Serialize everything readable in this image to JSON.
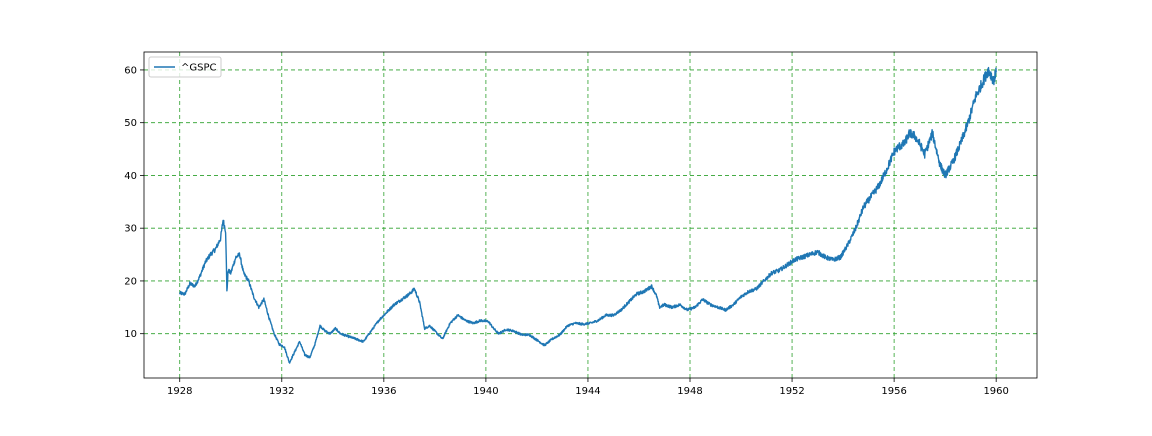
{
  "chart_data": {
    "type": "line",
    "title": "",
    "xlabel": "",
    "ylabel": "",
    "xlim": [
      1926.6,
      1961.6
    ],
    "ylim": [
      1.6,
      63.4
    ],
    "x_ticks": [
      1928,
      1932,
      1936,
      1940,
      1944,
      1948,
      1952,
      1956,
      1960
    ],
    "y_ticks": [
      10,
      20,
      30,
      40,
      50,
      60
    ],
    "grid": true,
    "grid_color": "#2ca02c",
    "legend_position": "top-left",
    "series": [
      {
        "name": "^GSPC",
        "color": "#1f77b4",
        "x": [
          1928.0,
          1928.2,
          1928.4,
          1928.6,
          1928.8,
          1929.0,
          1929.2,
          1929.4,
          1929.6,
          1929.7,
          1929.8,
          1929.85,
          1929.9,
          1930.0,
          1930.2,
          1930.35,
          1930.5,
          1930.7,
          1930.9,
          1931.1,
          1931.3,
          1931.5,
          1931.7,
          1931.9,
          1932.1,
          1932.3,
          1932.5,
          1932.7,
          1932.9,
          1933.1,
          1933.3,
          1933.5,
          1933.7,
          1933.9,
          1934.1,
          1934.3,
          1934.6,
          1934.9,
          1935.2,
          1935.5,
          1935.8,
          1936.1,
          1936.4,
          1936.7,
          1937.0,
          1937.2,
          1937.4,
          1937.6,
          1937.8,
          1938.0,
          1938.3,
          1938.6,
          1938.9,
          1939.2,
          1939.5,
          1939.8,
          1940.1,
          1940.3,
          1940.5,
          1940.8,
          1941.1,
          1941.4,
          1941.7,
          1942.0,
          1942.3,
          1942.6,
          1942.9,
          1943.2,
          1943.5,
          1943.8,
          1944.1,
          1944.4,
          1944.7,
          1945.0,
          1945.3,
          1945.6,
          1945.9,
          1946.2,
          1946.5,
          1946.7,
          1946.8,
          1947.0,
          1947.3,
          1947.6,
          1947.9,
          1948.2,
          1948.5,
          1948.8,
          1949.1,
          1949.4,
          1949.7,
          1950.0,
          1950.3,
          1950.6,
          1950.9,
          1951.2,
          1951.5,
          1951.8,
          1952.1,
          1952.4,
          1952.7,
          1953.0,
          1953.3,
          1953.6,
          1953.9,
          1954.2,
          1954.5,
          1954.8,
          1955.1,
          1955.4,
          1955.7,
          1956.0,
          1956.2,
          1956.4,
          1956.6,
          1956.8,
          1957.0,
          1957.2,
          1957.5,
          1957.8,
          1958.0,
          1958.3,
          1958.6,
          1958.9,
          1959.2,
          1959.5,
          1959.7,
          1959.9,
          1960.0
        ],
        "values": [
          17.7,
          17.5,
          19.5,
          19.0,
          21.0,
          23.5,
          25.0,
          26.0,
          28.0,
          31.5,
          29.5,
          18.0,
          22.0,
          21.5,
          24.5,
          25.0,
          21.5,
          20.0,
          17.0,
          15.0,
          16.5,
          13.0,
          10.0,
          8.0,
          7.5,
          4.5,
          6.5,
          8.5,
          6.0,
          5.5,
          8.0,
          11.5,
          10.5,
          10.0,
          11.0,
          10.0,
          9.5,
          9.0,
          8.5,
          10.5,
          12.5,
          14.0,
          15.5,
          16.5,
          17.5,
          18.5,
          16.0,
          11.0,
          11.5,
          10.5,
          9.0,
          12.0,
          13.5,
          12.5,
          12.0,
          12.5,
          12.3,
          11.0,
          10.0,
          10.8,
          10.5,
          9.8,
          9.8,
          8.8,
          7.8,
          9.0,
          9.8,
          11.5,
          12.0,
          11.8,
          12.0,
          12.5,
          13.5,
          13.5,
          14.5,
          16.0,
          17.5,
          18.0,
          19.0,
          17.0,
          15.0,
          15.5,
          15.0,
          15.5,
          14.5,
          15.0,
          16.5,
          15.5,
          15.0,
          14.5,
          15.5,
          17.0,
          18.0,
          18.5,
          20.0,
          21.5,
          22.0,
          23.0,
          24.0,
          24.5,
          25.0,
          25.5,
          24.5,
          24.0,
          24.5,
          27.0,
          30.0,
          34.0,
          36.0,
          38.0,
          41.0,
          44.5,
          45.5,
          46.0,
          48.0,
          47.5,
          46.0,
          44.0,
          48.0,
          42.0,
          40.0,
          42.5,
          46.0,
          50.0,
          55.0,
          58.0,
          60.0,
          58.0,
          59.5
        ]
      }
    ]
  }
}
